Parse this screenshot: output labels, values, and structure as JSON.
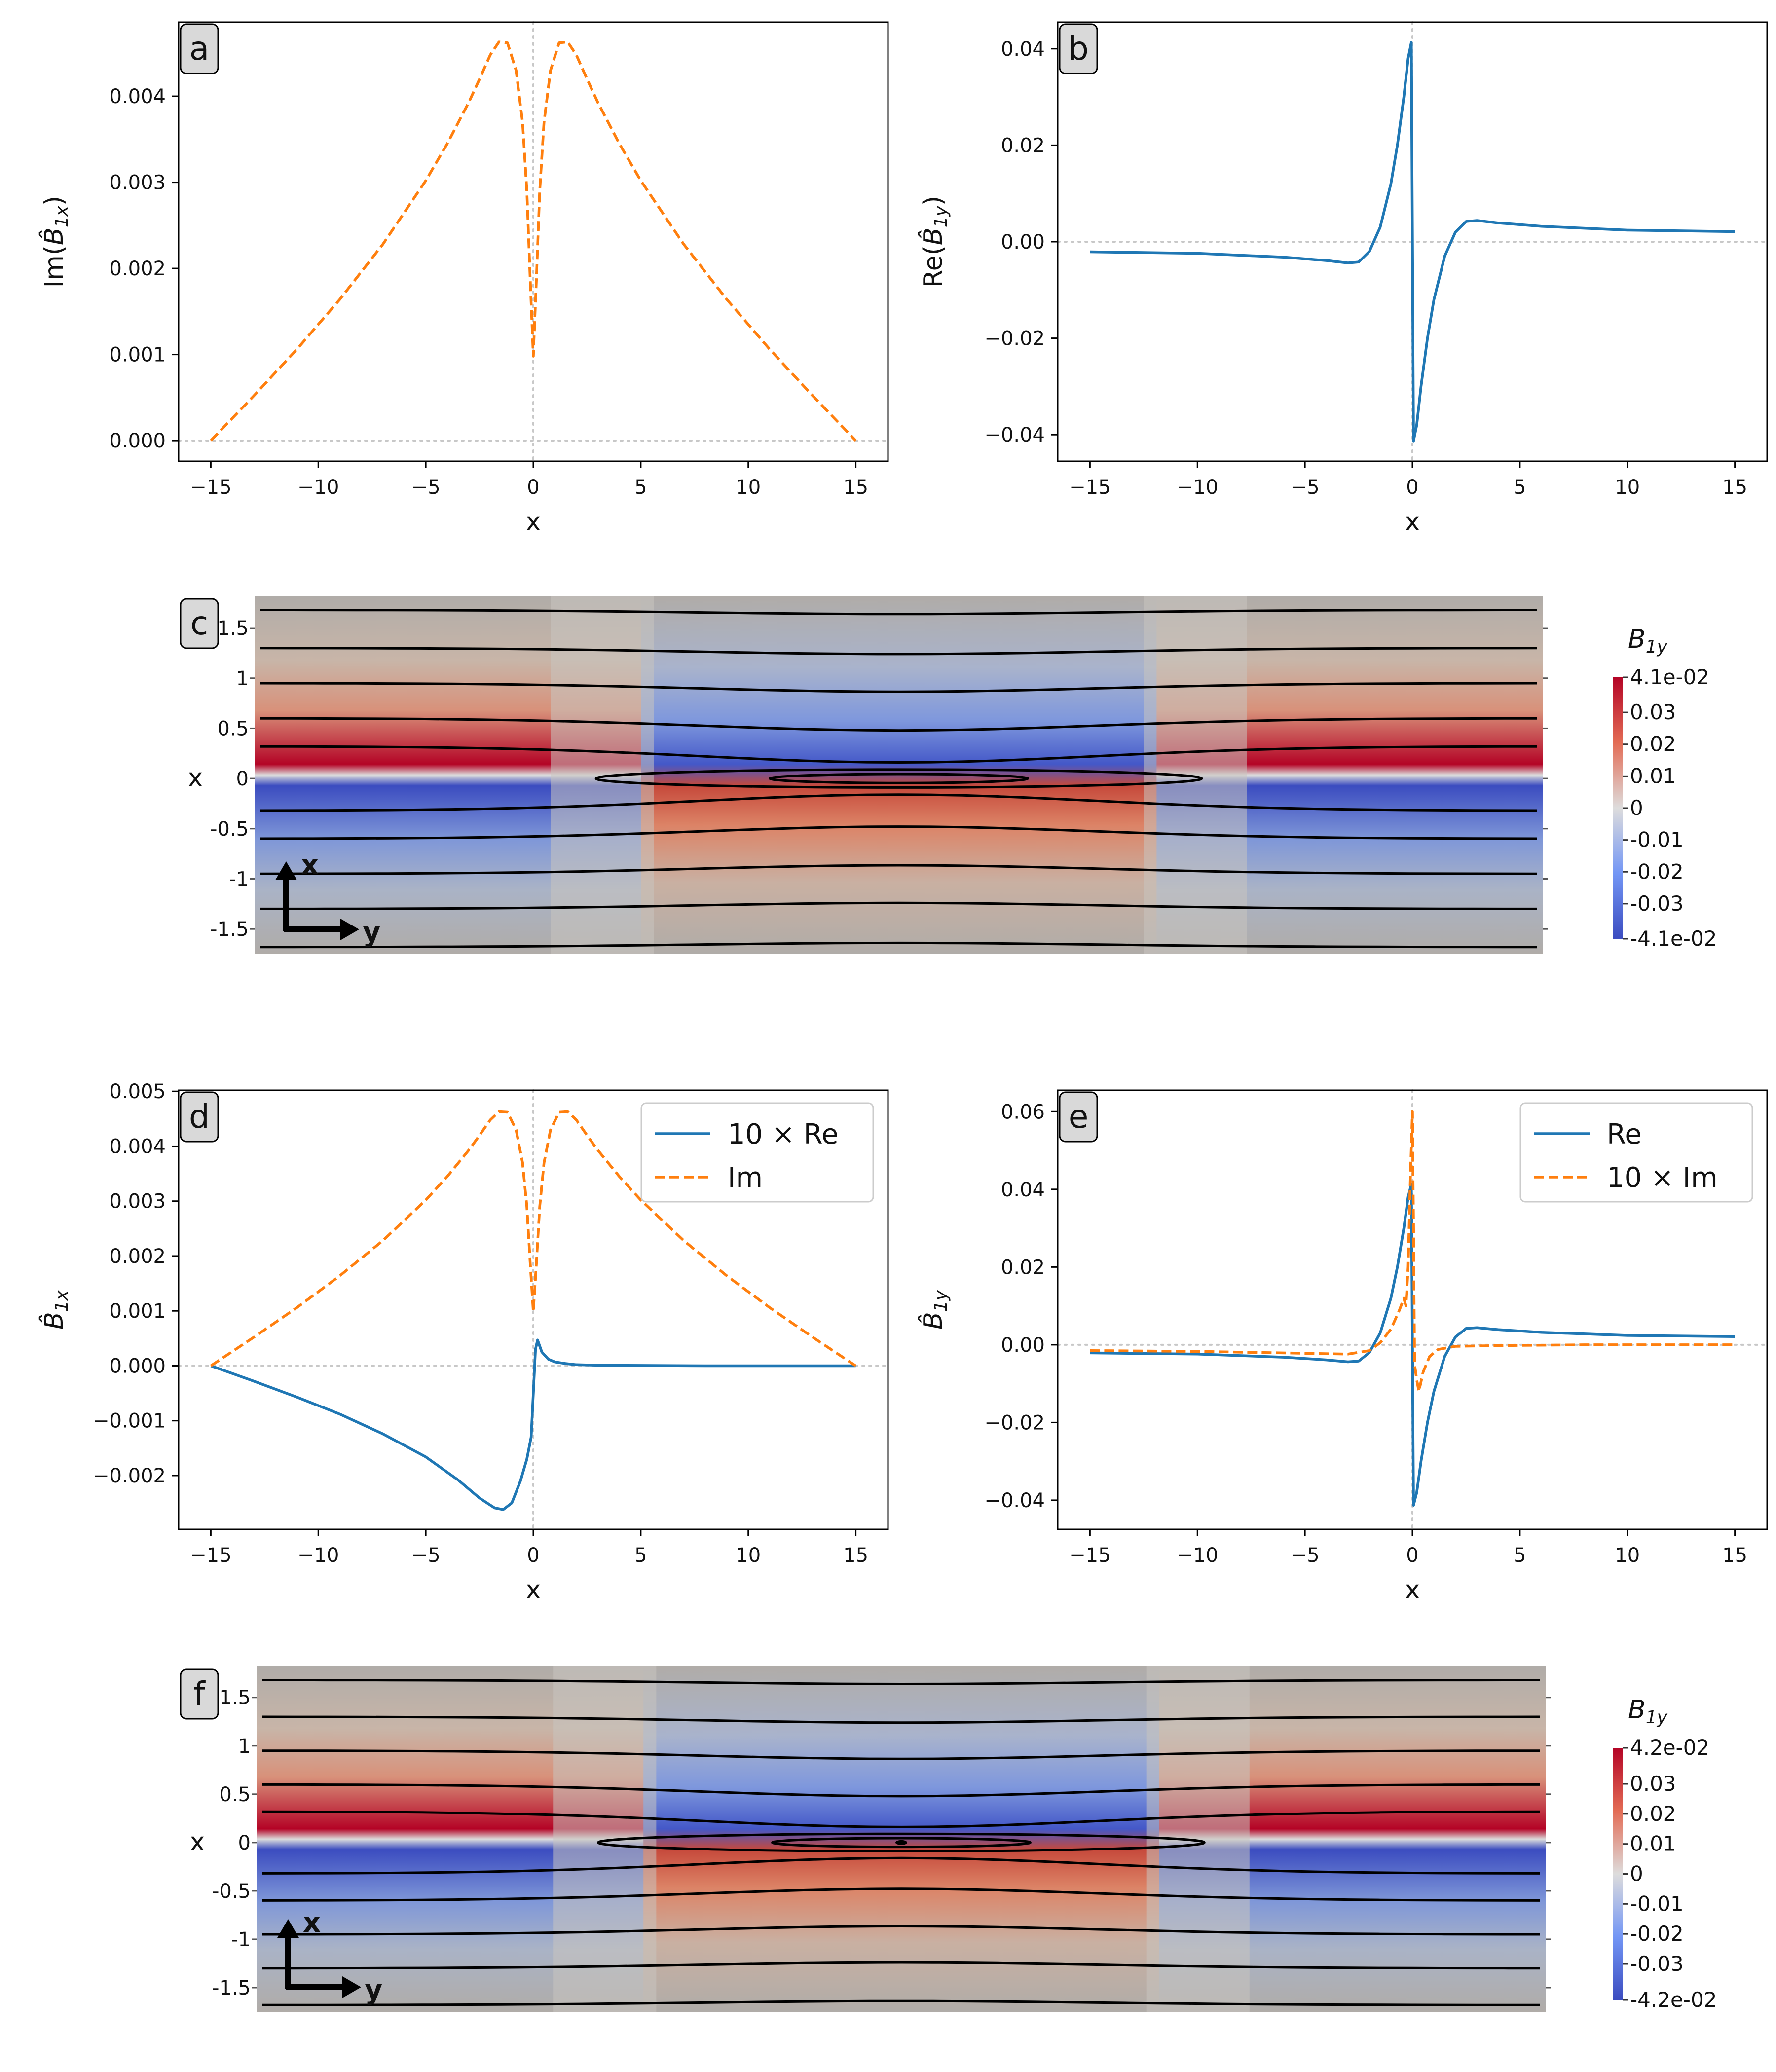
{
  "figure": {
    "background": "#ffffff",
    "colors": {
      "blue": "#1f77b4",
      "orange": "#ff7f0e",
      "axis": "#000000",
      "zero": "#c8c8c8"
    },
    "contour_color": "#000000"
  },
  "chart_data": [
    {
      "panel": "a",
      "type": "line",
      "xlabel": "x",
      "ylabel": "Im(B̂_1x)",
      "ylabel_main": "Im(",
      "ylabel_hat": "B̂",
      "ylabel_sub": "1x",
      "ylabel_close": ")",
      "xlim": [
        -16.5,
        16.5
      ],
      "ylim": [
        -0.00024,
        0.00486
      ],
      "xticks": [
        -15,
        -10,
        -5,
        0,
        5,
        10,
        15
      ],
      "xtick_labels": [
        "−15",
        "−10",
        "−5",
        "0",
        "5",
        "10",
        "15"
      ],
      "yticks": [
        0,
        0.001,
        0.002,
        0.003,
        0.004
      ],
      "ytick_labels": [
        "0.000",
        "0.001",
        "0.002",
        "0.003",
        "0.004"
      ],
      "zero_lines": true,
      "series": [
        {
          "name": "Im",
          "style": "dashed",
          "color": "#ff7f0e",
          "x": [
            -15,
            -13,
            -11,
            -9,
            -7,
            -5,
            -4,
            -3,
            -2.5,
            -2,
            -1.6,
            -1.2,
            -0.8,
            -0.5,
            -0.3,
            -0.15,
            0,
            0.15,
            0.3,
            0.5,
            0.8,
            1.2,
            1.6,
            2,
            2.5,
            3,
            4,
            5,
            7,
            9,
            11,
            13,
            15
          ],
          "y": [
            0,
            0.00052,
            0.00106,
            0.00164,
            0.00228,
            0.00302,
            0.00345,
            0.00393,
            0.0042,
            0.00448,
            0.00463,
            0.00462,
            0.0043,
            0.0037,
            0.0029,
            0.0019,
            0.00098,
            0.0019,
            0.0029,
            0.0037,
            0.0043,
            0.00462,
            0.00463,
            0.00448,
            0.0042,
            0.00393,
            0.00345,
            0.00302,
            0.00228,
            0.00164,
            0.00106,
            0.00052,
            0
          ]
        }
      ]
    },
    {
      "panel": "b",
      "type": "line",
      "xlabel": "x",
      "ylabel": "Re(B̂_1y)",
      "ylabel_main": "Re(",
      "ylabel_hat": "B̂",
      "ylabel_sub": "1y",
      "ylabel_close": ")",
      "xlim": [
        -16.5,
        16.5
      ],
      "ylim": [
        -0.0455,
        0.0455
      ],
      "xticks": [
        -15,
        -10,
        -5,
        0,
        5,
        10,
        15
      ],
      "xtick_labels": [
        "−15",
        "−10",
        "−5",
        "0",
        "5",
        "10",
        "15"
      ],
      "yticks": [
        -0.04,
        -0.02,
        0,
        0.02,
        0.04
      ],
      "ytick_labels": [
        "−0.04",
        "−0.02",
        "0.00",
        "0.02",
        "0.04"
      ],
      "zero_lines": true,
      "series": [
        {
          "name": "Re",
          "style": "solid",
          "color": "#1f77b4",
          "x": [
            -15,
            -10,
            -6,
            -4,
            -3,
            -2.5,
            -2,
            -1.5,
            -1,
            -0.7,
            -0.4,
            -0.2,
            -0.05,
            0,
            0.05,
            0.2,
            0.4,
            0.7,
            1,
            1.5,
            2,
            2.5,
            3,
            4,
            6,
            10,
            15
          ],
          "y": [
            -0.0021,
            -0.0024,
            -0.0032,
            -0.0039,
            -0.0044,
            -0.0042,
            -0.002,
            0.003,
            0.012,
            0.02,
            0.03,
            0.038,
            0.0413,
            0,
            -0.0413,
            -0.038,
            -0.03,
            -0.02,
            -0.012,
            -0.003,
            0.002,
            0.0042,
            0.0044,
            0.0039,
            0.0032,
            0.0024,
            0.0021
          ]
        }
      ]
    },
    {
      "panel": "c",
      "type": "heatmap",
      "ylabel": "x",
      "y_ticks": [
        1.5,
        1,
        0.5,
        0,
        -0.5,
        -1,
        -1.5
      ],
      "y_tick_labels": [
        "1.5",
        "1",
        "0.5",
        "0",
        "-0.5",
        "-1",
        "-1.5"
      ],
      "ylim": [
        -1.75,
        1.82
      ],
      "axes_labels": {
        "up": "x",
        "right": "y"
      },
      "colorbar": {
        "title": "B",
        "title_sub": "1y",
        "max_label": "4.1e-02",
        "min_label": "-4.1e-02",
        "tick_labels": [
          "0.03",
          "0.02",
          "0.01",
          "0",
          "-0.01",
          "-0.02",
          "-0.03"
        ],
        "range": [
          -0.041,
          0.041
        ]
      }
    },
    {
      "panel": "d",
      "type": "line",
      "xlabel": "x",
      "ylabel": "B̂_1x",
      "ylabel_main": "",
      "ylabel_hat": "B̂",
      "ylabel_sub": "1x",
      "ylabel_close": "",
      "xlim": [
        -16.5,
        16.5
      ],
      "ylim": [
        -0.00298,
        0.00502
      ],
      "xticks": [
        -15,
        -10,
        -5,
        0,
        5,
        10,
        15
      ],
      "xtick_labels": [
        "−15",
        "−10",
        "−5",
        "0",
        "5",
        "10",
        "15"
      ],
      "yticks": [
        -0.002,
        -0.001,
        0,
        0.001,
        0.002,
        0.003,
        0.004,
        0.005
      ],
      "ytick_labels": [
        "−0.002",
        "−0.001",
        "0.000",
        "0.001",
        "0.002",
        "0.003",
        "0.004",
        "0.005"
      ],
      "zero_lines": true,
      "legend": {
        "position": "top-right",
        "entries": [
          "10 × Re",
          "Im"
        ]
      },
      "series": [
        {
          "name": "10 × Re",
          "style": "solid",
          "color": "#1f77b4",
          "x": [
            -15,
            -13,
            -11,
            -9,
            -7,
            -5,
            -3.5,
            -2.5,
            -1.8,
            -1.4,
            -1,
            -0.6,
            -0.3,
            -0.1,
            0,
            0.1,
            0.2,
            0.4,
            0.7,
            1,
            1.5,
            2,
            3,
            5,
            8,
            11,
            15
          ],
          "y": [
            0,
            -0.00028,
            -0.00057,
            -0.00088,
            -0.00124,
            -0.00166,
            -0.00208,
            -0.00241,
            -0.00259,
            -0.00262,
            -0.0025,
            -0.0021,
            -0.0017,
            -0.0013,
            -0.0005,
            0.0003,
            0.00047,
            0.00025,
            0.00012,
            7e-05,
            4e-05,
            2e-05,
            1e-05,
            5e-06,
            0,
            0,
            0
          ]
        },
        {
          "name": "Im",
          "style": "dashed",
          "color": "#ff7f0e",
          "x": [
            -15,
            -13,
            -11,
            -9,
            -7,
            -5,
            -4,
            -3,
            -2.5,
            -2,
            -1.6,
            -1.2,
            -0.8,
            -0.5,
            -0.3,
            -0.15,
            0,
            0.15,
            0.3,
            0.5,
            0.8,
            1.2,
            1.6,
            2,
            2.5,
            3,
            4,
            5,
            7,
            9,
            11,
            13,
            15
          ],
          "y": [
            0,
            0.00052,
            0.00106,
            0.00164,
            0.00228,
            0.00302,
            0.00345,
            0.00393,
            0.0042,
            0.00448,
            0.00463,
            0.00462,
            0.0043,
            0.0037,
            0.0029,
            0.0019,
            0.00098,
            0.0019,
            0.0029,
            0.0037,
            0.0043,
            0.00462,
            0.00463,
            0.00448,
            0.0042,
            0.00393,
            0.00345,
            0.00302,
            0.00228,
            0.00164,
            0.00106,
            0.00052,
            0
          ]
        }
      ]
    },
    {
      "panel": "e",
      "type": "line",
      "xlabel": "x",
      "ylabel": "B̂_1y",
      "ylabel_main": "",
      "ylabel_hat": "B̂",
      "ylabel_sub": "1y",
      "ylabel_close": "",
      "xlim": [
        -16.5,
        16.5
      ],
      "ylim": [
        -0.0475,
        0.0655
      ],
      "xticks": [
        -15,
        -10,
        -5,
        0,
        5,
        10,
        15
      ],
      "xtick_labels": [
        "−15",
        "−10",
        "−5",
        "0",
        "5",
        "10",
        "15"
      ],
      "yticks": [
        -0.04,
        -0.02,
        0,
        0.02,
        0.04,
        0.06
      ],
      "ytick_labels": [
        "−0.04",
        "−0.02",
        "0.00",
        "0.02",
        "0.04",
        "0.06"
      ],
      "zero_lines": true,
      "legend": {
        "position": "top-right",
        "entries": [
          "Re",
          "10 × Im"
        ]
      },
      "series": [
        {
          "name": "Re",
          "style": "solid",
          "color": "#1f77b4",
          "x": [
            -15,
            -10,
            -6,
            -4,
            -3,
            -2.5,
            -2,
            -1.5,
            -1,
            -0.7,
            -0.4,
            -0.2,
            -0.05,
            0,
            0.05,
            0.2,
            0.4,
            0.7,
            1,
            1.5,
            2,
            2.5,
            3,
            4,
            6,
            10,
            15
          ],
          "y": [
            -0.0021,
            -0.0024,
            -0.0032,
            -0.0039,
            -0.0044,
            -0.0042,
            -0.002,
            0.003,
            0.012,
            0.02,
            0.03,
            0.038,
            0.0413,
            0,
            -0.0413,
            -0.038,
            -0.03,
            -0.02,
            -0.012,
            -0.003,
            0.002,
            0.0042,
            0.0044,
            0.0039,
            0.0032,
            0.0024,
            0.0021
          ]
        },
        {
          "name": "10 × Im",
          "style": "dashed",
          "color": "#ff7f0e",
          "x": [
            -15,
            -10,
            -5,
            -3,
            -2,
            -1.5,
            -1,
            -0.6,
            -0.4,
            -0.3,
            -0.2,
            -0.1,
            0,
            0.05,
            0.1,
            0.2,
            0.3,
            0.5,
            0.8,
            1.2,
            2,
            4,
            8,
            15
          ],
          "y": [
            -0.0015,
            -0.0017,
            -0.0022,
            -0.0024,
            -0.0015,
            0.0005,
            0.004,
            0.009,
            0.012,
            0.01,
            0.02,
            0.042,
            0.06,
            0.03,
            -0.005,
            -0.009,
            -0.012,
            -0.007,
            -0.003,
            -0.0012,
            -0.0004,
            -0.0002,
            0,
            0
          ]
        }
      ]
    },
    {
      "panel": "f",
      "type": "heatmap",
      "ylabel": "x",
      "y_ticks": [
        1.5,
        1,
        0.5,
        0,
        -0.5,
        -1,
        -1.5
      ],
      "y_tick_labels": [
        "1.5",
        "1",
        "0.5",
        "0",
        "-0.5",
        "-1",
        "-1.5"
      ],
      "ylim": [
        -1.75,
        1.82
      ],
      "axes_labels": {
        "up": "x",
        "right": "y"
      },
      "colorbar": {
        "title": "B",
        "title_sub": "1y",
        "max_label": "4.2e-02",
        "min_label": "-4.2e-02",
        "tick_labels": [
          "0.03",
          "0.02",
          "0.01",
          "0",
          "-0.01",
          "-0.02",
          "-0.03"
        ],
        "range": [
          -0.042,
          0.042
        ]
      }
    }
  ]
}
